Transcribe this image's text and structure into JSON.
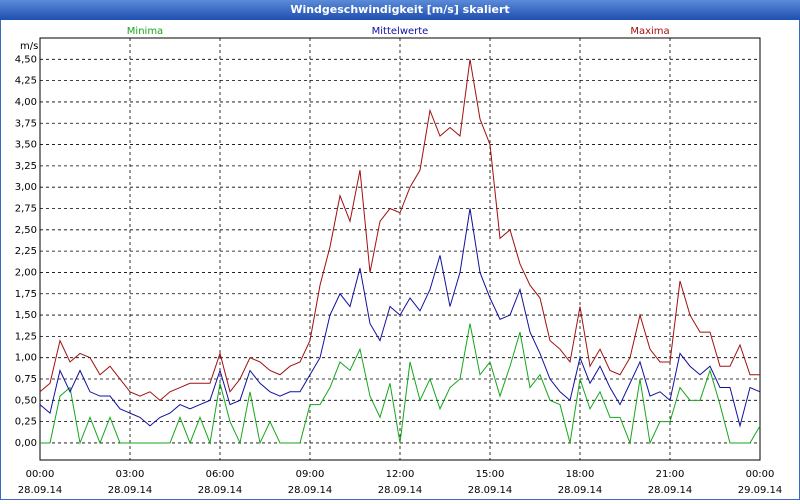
{
  "chart_data": {
    "type": "line",
    "title": "Windgeschwindigkeit [m/s] skaliert",
    "ylabel": "m/s",
    "x": [
      0,
      20,
      40,
      60,
      80,
      100,
      120,
      140,
      160,
      180,
      200,
      220,
      240,
      260,
      280,
      300,
      320,
      340,
      360,
      380,
      400,
      420,
      440,
      460,
      480,
      500,
      520,
      540,
      560,
      580,
      600,
      620,
      640,
      660,
      680,
      700,
      720,
      740,
      760,
      780,
      800,
      820,
      840,
      860,
      880,
      900,
      920,
      940,
      960,
      980,
      1000,
      1020,
      1040,
      1060,
      1080,
      1100,
      1120,
      1140,
      1160,
      1180,
      1200,
      1220,
      1240,
      1260,
      1280,
      1300,
      1320,
      1340,
      1360,
      1380,
      1400,
      1420,
      1440
    ],
    "series": [
      {
        "name": "Minima",
        "color": "#17a51b",
        "values": [
          0.0,
          0.0,
          0.55,
          0.65,
          0.0,
          0.3,
          0.0,
          0.3,
          0.0,
          0.0,
          0.0,
          0.0,
          0.0,
          0.0,
          0.3,
          0.0,
          0.3,
          0.0,
          0.7,
          0.25,
          0.0,
          0.6,
          0.0,
          0.25,
          0.0,
          0.0,
          0.0,
          0.45,
          0.45,
          0.65,
          0.95,
          0.85,
          1.1,
          0.55,
          0.3,
          0.7,
          0.0,
          0.95,
          0.5,
          0.75,
          0.4,
          0.65,
          0.75,
          1.4,
          0.8,
          0.95,
          0.55,
          0.9,
          1.3,
          0.65,
          0.8,
          0.5,
          0.45,
          0.0,
          0.75,
          0.4,
          0.6,
          0.3,
          0.3,
          0.0,
          0.75,
          0.0,
          0.25,
          0.25,
          0.65,
          0.5,
          0.5,
          0.85,
          0.45,
          0.0,
          0.0,
          0.0,
          0.2
        ]
      },
      {
        "name": "Mittelwerte",
        "color": "#1010a0",
        "values": [
          0.45,
          0.35,
          0.85,
          0.6,
          0.85,
          0.6,
          0.55,
          0.55,
          0.4,
          0.35,
          0.3,
          0.2,
          0.3,
          0.35,
          0.45,
          0.4,
          0.45,
          0.5,
          0.85,
          0.45,
          0.5,
          0.85,
          0.7,
          0.6,
          0.55,
          0.6,
          0.6,
          0.8,
          1.0,
          1.5,
          1.75,
          1.6,
          2.05,
          1.4,
          1.2,
          1.6,
          1.5,
          1.7,
          1.55,
          1.8,
          2.2,
          1.6,
          2.0,
          2.75,
          2.0,
          1.7,
          1.45,
          1.5,
          1.8,
          1.3,
          1.05,
          0.75,
          0.6,
          0.5,
          1.0,
          0.7,
          0.9,
          0.65,
          0.45,
          0.7,
          0.95,
          0.55,
          0.6,
          0.5,
          1.05,
          0.9,
          0.8,
          0.9,
          0.65,
          0.65,
          0.2,
          0.65,
          0.6
        ]
      },
      {
        "name": "Maxima",
        "color": "#a01010",
        "values": [
          0.6,
          0.7,
          1.2,
          0.95,
          1.05,
          1.0,
          0.8,
          0.9,
          0.75,
          0.6,
          0.55,
          0.6,
          0.5,
          0.6,
          0.65,
          0.7,
          0.7,
          0.7,
          1.05,
          0.6,
          0.75,
          1.0,
          0.95,
          0.85,
          0.8,
          0.9,
          0.95,
          1.2,
          1.85,
          2.3,
          2.9,
          2.6,
          3.2,
          2.0,
          2.6,
          2.75,
          2.7,
          3.0,
          3.2,
          3.9,
          3.6,
          3.7,
          3.6,
          4.5,
          3.8,
          3.5,
          2.4,
          2.5,
          2.1,
          1.85,
          1.7,
          1.2,
          1.1,
          0.95,
          1.6,
          0.9,
          1.1,
          0.85,
          0.8,
          1.0,
          1.5,
          1.1,
          0.95,
          0.95,
          1.9,
          1.5,
          1.3,
          1.3,
          0.9,
          0.9,
          1.15,
          0.8,
          0.8
        ]
      }
    ],
    "xlim": [
      0,
      1440
    ],
    "xticks": [
      {
        "value": 0,
        "label": "00:00"
      },
      {
        "value": 180,
        "label": "03:00"
      },
      {
        "value": 360,
        "label": "06:00"
      },
      {
        "value": 540,
        "label": "09:00"
      },
      {
        "value": 720,
        "label": "12:00"
      },
      {
        "value": 900,
        "label": "15:00"
      },
      {
        "value": 1080,
        "label": "18:00"
      },
      {
        "value": 1260,
        "label": "21:00"
      },
      {
        "value": 1440,
        "label": "00:00"
      }
    ],
    "xtick_dates": [
      "28.09.14",
      "28.09.14",
      "28.09.14",
      "28.09.14",
      "28.09.14",
      "28.09.14",
      "28.09.14",
      "28.09.14",
      "29.09.14"
    ],
    "ylim": [
      -0.2,
      4.75
    ],
    "yticks": [
      {
        "value": 0,
        "label": "0,00"
      },
      {
        "value": 0.25,
        "label": "0,25"
      },
      {
        "value": 0.5,
        "label": "0,50"
      },
      {
        "value": 0.75,
        "label": "0,75"
      },
      {
        "value": 1,
        "label": "1,00"
      },
      {
        "value": 1.25,
        "label": "1,25"
      },
      {
        "value": 1.5,
        "label": "1,50"
      },
      {
        "value": 1.75,
        "label": "1,75"
      },
      {
        "value": 2,
        "label": "2,00"
      },
      {
        "value": 2.25,
        "label": "2,25"
      },
      {
        "value": 2.5,
        "label": "2,50"
      },
      {
        "value": 2.75,
        "label": "2,75"
      },
      {
        "value": 3,
        "label": "3,00"
      },
      {
        "value": 3.25,
        "label": "3,25"
      },
      {
        "value": 3.5,
        "label": "3,50"
      },
      {
        "value": 3.75,
        "label": "3,75"
      },
      {
        "value": 4,
        "label": "4,00"
      },
      {
        "value": 4.25,
        "label": "4,25"
      },
      {
        "value": 4.5,
        "label": "4,50"
      }
    ],
    "grid": true
  }
}
